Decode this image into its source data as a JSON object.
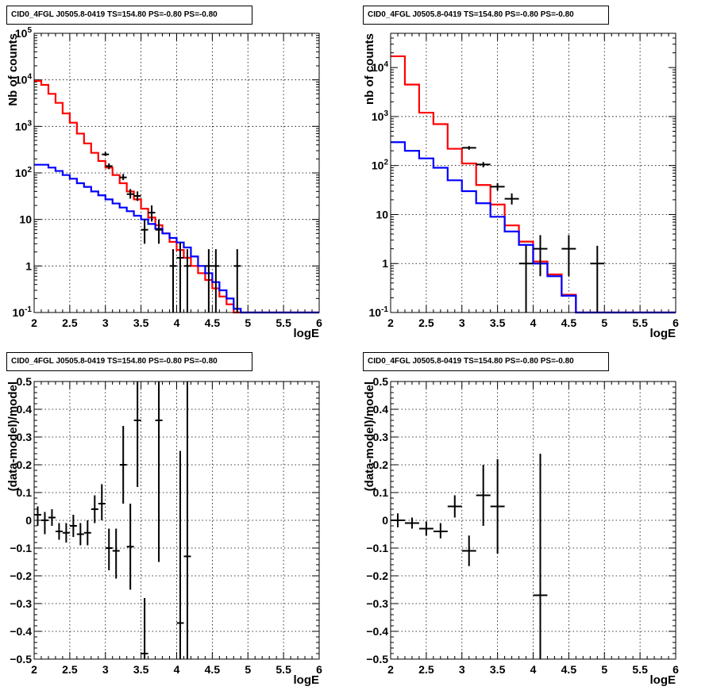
{
  "chart_data": [
    {
      "type": "line",
      "title": "CID0_4FGL J0505.8-0419 TS=154.80 PS=-0.80 PS=-0.80",
      "xlabel": "logE",
      "ylabel": "Nb of counts",
      "xlim": [
        2,
        6
      ],
      "ylim": [
        0.1,
        100000
      ],
      "yscale": "log",
      "grid": true,
      "xticks": [
        "2",
        "2.5",
        "3",
        "3.5",
        "4",
        "4.5",
        "5",
        "5.5",
        "6"
      ],
      "yticks": [
        "10^-1",
        "1",
        "10",
        "10^2",
        "10^3",
        "10^4",
        "10^5"
      ],
      "bin_edges": [
        2.0,
        2.1,
        2.2,
        2.3,
        2.4,
        2.5,
        2.6,
        2.7,
        2.8,
        2.9,
        3.0,
        3.1,
        3.2,
        3.3,
        3.4,
        3.5,
        3.6,
        3.7,
        3.8,
        3.9,
        4.0,
        4.1,
        4.2,
        4.3,
        4.4,
        4.5,
        4.6,
        4.7,
        4.8,
        4.9,
        5.0,
        5.1,
        5.2,
        5.3,
        5.4,
        5.5,
        5.6,
        5.7,
        5.8,
        5.9,
        6.0
      ],
      "series": [
        {
          "color": "#ff0000",
          "values": [
            9500,
            7800,
            5000,
            3200,
            1900,
            1200,
            700,
            430,
            270,
            180,
            130,
            90,
            60,
            40,
            27,
            17,
            11,
            7.5,
            5,
            3.3,
            2.2,
            1.5,
            1.0,
            0.7,
            0.5,
            0.33,
            0.22,
            0.15,
            0.1,
            0.1,
            0.1,
            0.1,
            0.1,
            0.1,
            0.1,
            0.1,
            0.1,
            0.1,
            0.1,
            0.1
          ]
        },
        {
          "color": "#0000ff",
          "values": [
            150,
            150,
            130,
            110,
            90,
            75,
            60,
            50,
            40,
            33,
            27,
            22,
            18,
            15,
            12,
            10,
            8,
            6.3,
            5,
            4,
            3.2,
            2.5,
            1.6,
            1.0,
            0.7,
            0.45,
            0.3,
            0.2,
            0.12,
            0.1,
            0.1,
            0.1,
            0.1,
            0.1,
            0.1,
            0.1,
            0.1,
            0.1,
            0.1,
            0.1
          ]
        }
      ],
      "points": [
        {
          "x": 3.0,
          "y": 250,
          "ylo": 230,
          "yhi": 280
        },
        {
          "x": 3.05,
          "y": 140,
          "ylo": 120,
          "yhi": 160
        },
        {
          "x": 3.25,
          "y": 80,
          "ylo": 70,
          "yhi": 95
        },
        {
          "x": 3.35,
          "y": 35,
          "ylo": 28,
          "yhi": 45
        },
        {
          "x": 3.45,
          "y": 32,
          "ylo": 25,
          "yhi": 40
        },
        {
          "x": 3.55,
          "y": 6,
          "ylo": 3,
          "yhi": 10
        },
        {
          "x": 3.65,
          "y": 14,
          "ylo": 9,
          "yhi": 20
        },
        {
          "x": 3.75,
          "y": 6,
          "ylo": 3,
          "yhi": 10
        },
        {
          "x": 3.95,
          "y": 1,
          "ylo": 0.1,
          "yhi": 2.3
        },
        {
          "x": 4.05,
          "y": 1.5,
          "ylo": 0.1,
          "yhi": 3.2
        },
        {
          "x": 4.15,
          "y": 1,
          "ylo": 0.1,
          "yhi": 2.3
        },
        {
          "x": 4.45,
          "y": 1,
          "ylo": 0.1,
          "yhi": 2.3
        },
        {
          "x": 4.55,
          "y": 1,
          "ylo": 0.1,
          "yhi": 2.3
        },
        {
          "x": 4.85,
          "y": 1,
          "ylo": 0.1,
          "yhi": 2.3
        }
      ],
      "point_half_width": 0.05
    },
    {
      "type": "line",
      "title": "CID0_4FGL J0505.8-0419 TS=154.80 PS=-0.80 PS=-0.80",
      "xlabel": "logE",
      "ylabel": "nb of counts",
      "xlim": [
        2,
        6
      ],
      "ylim": [
        0.1,
        50000
      ],
      "yscale": "log",
      "grid": true,
      "xticks": [
        "2",
        "2.5",
        "3",
        "3.5",
        "4",
        "4.5",
        "5",
        "5.5",
        "6"
      ],
      "yticks": [
        "10^-1",
        "1",
        "10",
        "10^2",
        "10^3",
        "10^4"
      ],
      "bin_edges": [
        2.0,
        2.2,
        2.4,
        2.6,
        2.8,
        3.0,
        3.2,
        3.4,
        3.6,
        3.8,
        4.0,
        4.2,
        4.4,
        4.6,
        4.8,
        5.0,
        5.2,
        5.4,
        5.6,
        5.8,
        6.0
      ],
      "series": [
        {
          "color": "#ff0000",
          "values": [
            17000,
            4500,
            1200,
            700,
            220,
            110,
            40,
            16,
            6,
            2.8,
            1.1,
            0.6,
            0.23,
            0.1,
            0.1,
            0.1,
            0.1,
            0.1,
            0.1,
            0.1
          ]
        },
        {
          "color": "#0000ff",
          "values": [
            300,
            200,
            140,
            90,
            50,
            30,
            17,
            9,
            4.5,
            2.4,
            1.0,
            0.55,
            0.22,
            0.1,
            0.1,
            0.1,
            0.1,
            0.1,
            0.1,
            0.1
          ]
        }
      ],
      "points": [
        {
          "x": 3.1,
          "y": 230,
          "ylo": 210,
          "yhi": 250
        },
        {
          "x": 3.3,
          "y": 105,
          "ylo": 92,
          "yhi": 118
        },
        {
          "x": 3.5,
          "y": 37,
          "ylo": 31,
          "yhi": 44
        },
        {
          "x": 3.7,
          "y": 21,
          "ylo": 16,
          "yhi": 27
        },
        {
          "x": 3.9,
          "y": 1,
          "ylo": 0.1,
          "yhi": 2.3
        },
        {
          "x": 4.1,
          "y": 2,
          "ylo": 0.55,
          "yhi": 3.8
        },
        {
          "x": 4.5,
          "y": 2,
          "ylo": 0.55,
          "yhi": 3.8
        },
        {
          "x": 4.9,
          "y": 1,
          "ylo": 0.1,
          "yhi": 2.3
        }
      ],
      "point_half_width": 0.1
    },
    {
      "type": "scatter",
      "title": "CID0_4FGL J0505.8-0419 TS=154.80 PS=-0.80 PS=-0.80",
      "xlabel": "logE",
      "ylabel": "(data-model)/model",
      "xlim": [
        2,
        6
      ],
      "ylim": [
        -0.5,
        0.5
      ],
      "grid": true,
      "xticks": [
        "2",
        "2.5",
        "3",
        "3.5",
        "4",
        "4.5",
        "5",
        "5.5",
        "6"
      ],
      "yticks": [
        "-0.5",
        "-0.4",
        "-0.3",
        "-0.2",
        "-0.1",
        "0",
        "0.1",
        "0.2",
        "0.3",
        "0.4",
        "0.5"
      ],
      "points": [
        {
          "x": 2.05,
          "y": 0.02,
          "ylo": -0.02,
          "yhi": 0.05
        },
        {
          "x": 2.15,
          "y": 0.0,
          "ylo": -0.05,
          "yhi": 0.03
        },
        {
          "x": 2.25,
          "y": 0.01,
          "ylo": -0.02,
          "yhi": 0.04
        },
        {
          "x": 2.35,
          "y": -0.04,
          "ylo": -0.07,
          "yhi": -0.01
        },
        {
          "x": 2.45,
          "y": -0.045,
          "ylo": -0.08,
          "yhi": -0.01
        },
        {
          "x": 2.55,
          "y": -0.02,
          "ylo": -0.06,
          "yhi": 0.02
        },
        {
          "x": 2.65,
          "y": -0.05,
          "ylo": -0.09,
          "yhi": -0.01
        },
        {
          "x": 2.75,
          "y": -0.045,
          "ylo": -0.09,
          "yhi": 0.0
        },
        {
          "x": 2.85,
          "y": 0.04,
          "ylo": -0.01,
          "yhi": 0.09
        },
        {
          "x": 2.95,
          "y": 0.06,
          "ylo": 0.0,
          "yhi": 0.13
        },
        {
          "x": 3.05,
          "y": -0.1,
          "ylo": -0.18,
          "yhi": -0.03
        },
        {
          "x": 3.15,
          "y": -0.11,
          "ylo": -0.21,
          "yhi": -0.03
        },
        {
          "x": 3.25,
          "y": 0.2,
          "ylo": 0.06,
          "yhi": 0.34
        },
        {
          "x": 3.35,
          "y": -0.095,
          "ylo": -0.25,
          "yhi": 0.06
        },
        {
          "x": 3.45,
          "y": 0.36,
          "ylo": 0.12,
          "yhi": 0.5
        },
        {
          "x": 3.55,
          "y": -0.48,
          "ylo": -0.5,
          "yhi": -0.28
        },
        {
          "x": 3.75,
          "y": 0.36,
          "ylo": -0.15,
          "yhi": 0.5
        },
        {
          "x": 4.05,
          "y": -0.37,
          "ylo": -0.5,
          "yhi": 0.25
        },
        {
          "x": 4.15,
          "y": -0.13,
          "ylo": -0.5,
          "yhi": 0.5
        }
      ],
      "point_half_width": 0.05
    },
    {
      "type": "scatter",
      "title": "CID0_4FGL J0505.8-0419 TS=154.80 PS=-0.80 PS=-0.80",
      "xlabel": "logE",
      "ylabel": "(data-model)/model",
      "xlim": [
        2,
        6
      ],
      "ylim": [
        -0.5,
        0.5
      ],
      "grid": true,
      "xticks": [
        "2",
        "2.5",
        "3",
        "3.5",
        "4",
        "4.5",
        "5",
        "5.5",
        "6"
      ],
      "yticks": [
        "-0.5",
        "-0.4",
        "-0.3",
        "-0.2",
        "-0.1",
        "0",
        "0.1",
        "0.2",
        "0.3",
        "0.4",
        "0.5"
      ],
      "points": [
        {
          "x": 2.1,
          "y": 0.0,
          "ylo": -0.025,
          "yhi": 0.025
        },
        {
          "x": 2.3,
          "y": -0.01,
          "ylo": -0.03,
          "yhi": 0.01
        },
        {
          "x": 2.5,
          "y": -0.03,
          "ylo": -0.055,
          "yhi": -0.005
        },
        {
          "x": 2.7,
          "y": -0.04,
          "ylo": -0.065,
          "yhi": -0.01
        },
        {
          "x": 2.9,
          "y": 0.05,
          "ylo": 0.01,
          "yhi": 0.09
        },
        {
          "x": 3.1,
          "y": -0.11,
          "ylo": -0.165,
          "yhi": -0.055
        },
        {
          "x": 3.3,
          "y": 0.09,
          "ylo": -0.02,
          "yhi": 0.2
        },
        {
          "x": 3.5,
          "y": 0.05,
          "ylo": -0.12,
          "yhi": 0.22
        },
        {
          "x": 4.1,
          "y": -0.27,
          "ylo": -0.5,
          "yhi": 0.24
        }
      ],
      "point_half_width": 0.1
    }
  ]
}
